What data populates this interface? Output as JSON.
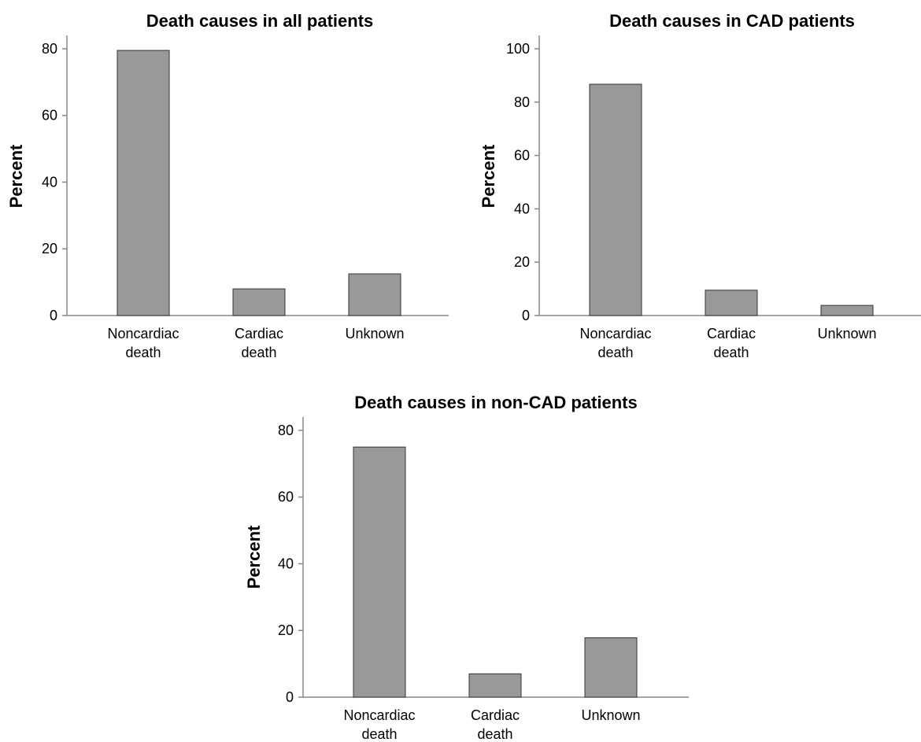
{
  "colors": {
    "bar_fill": "#999999",
    "bar_stroke": "#333333",
    "axis": "#888888",
    "background": "#ffffff"
  },
  "chart_data": [
    {
      "type": "bar",
      "title": "Death causes in all patients",
      "xlabel": "",
      "ylabel": "Percent",
      "categories": [
        [
          "Noncardiac",
          "death"
        ],
        [
          "Cardiac",
          "death"
        ],
        [
          "Unknown"
        ]
      ],
      "values": [
        79.5,
        8,
        12.5
      ],
      "ylim": [
        0,
        84
      ],
      "yticks": [
        0,
        20,
        40,
        60,
        80
      ],
      "grid": false,
      "legend": "none"
    },
    {
      "type": "bar",
      "title": "Death causes in CAD patients",
      "xlabel": "",
      "ylabel": "Percent",
      "categories": [
        [
          "Noncardiac",
          "death"
        ],
        [
          "Cardiac",
          "death"
        ],
        [
          "Unknown"
        ]
      ],
      "values": [
        86.7,
        9.5,
        3.8
      ],
      "ylim": [
        0,
        105
      ],
      "yticks": [
        0,
        20,
        40,
        60,
        80,
        100
      ],
      "grid": false,
      "legend": "none"
    },
    {
      "type": "bar",
      "title": "Death causes in non-CAD patients",
      "xlabel": "",
      "ylabel": "Percent",
      "categories": [
        [
          "Noncardiac",
          "death"
        ],
        [
          "Cardiac",
          "death"
        ],
        [
          "Unknown"
        ]
      ],
      "values": [
        75,
        7,
        17.8
      ],
      "ylim": [
        0,
        84
      ],
      "yticks": [
        0,
        20,
        40,
        60,
        80
      ],
      "grid": false,
      "legend": "none"
    }
  ]
}
